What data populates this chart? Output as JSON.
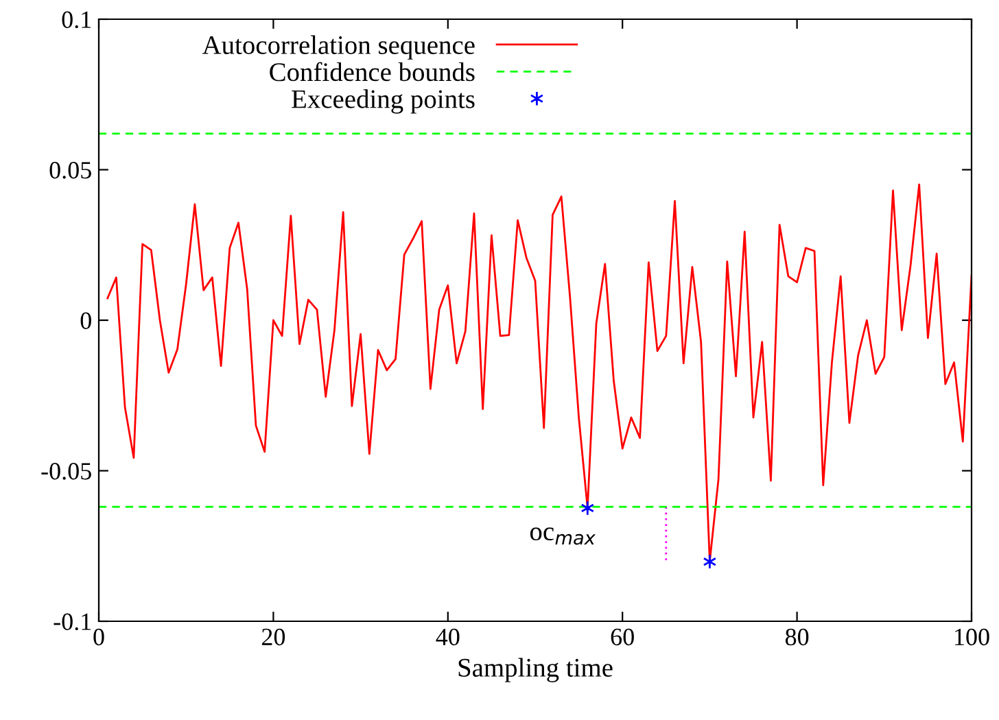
{
  "chart_data": {
    "type": "line",
    "xlabel": "Sampling time",
    "x": [
      1,
      2,
      3,
      4,
      5,
      6,
      7,
      8,
      9,
      10,
      11,
      12,
      13,
      14,
      15,
      16,
      17,
      18,
      19,
      20,
      21,
      22,
      23,
      24,
      25,
      26,
      27,
      28,
      29,
      30,
      31,
      32,
      33,
      34,
      35,
      36,
      37,
      38,
      39,
      40,
      41,
      42,
      43,
      44,
      45,
      46,
      47,
      48,
      49,
      50,
      51,
      52,
      53,
      54,
      55,
      56,
      57,
      58,
      59,
      60,
      61,
      62,
      63,
      64,
      65,
      66,
      67,
      68,
      69,
      70,
      71,
      72,
      73,
      74,
      75,
      76,
      77,
      78,
      79,
      80,
      81,
      82,
      83,
      84,
      85,
      86,
      87,
      88,
      89,
      90,
      91,
      92,
      93,
      94,
      95,
      96,
      97,
      98,
      99,
      100
    ],
    "series": [
      {
        "name": "Autocorrelation sequence",
        "color": "#ff0000",
        "values": [
          0.0073,
          0.0142,
          -0.029,
          -0.0457,
          0.0253,
          0.0233,
          0,
          -0.0174,
          -0.0097,
          0.0119,
          0.0385,
          0.01,
          0.0142,
          -0.0152,
          0.024,
          0.0324,
          0.0103,
          -0.035,
          -0.0437,
          0,
          -0.0052,
          0.0347,
          -0.0079,
          0.0068,
          0.0035,
          -0.0254,
          -0.0033,
          0.0359,
          -0.0285,
          -0.0046,
          -0.0444,
          -0.0099,
          -0.0166,
          -0.0129,
          0.0218,
          0.0271,
          0.0329,
          -0.0228,
          0.0035,
          0.0116,
          -0.0143,
          -0.0037,
          0.0355,
          -0.0295,
          0.0282,
          -0.0052,
          -0.0049,
          0.0332,
          0.0207,
          0.0131,
          -0.0358,
          0.035,
          0.0411,
          0.0073,
          -0.0323,
          -0.0624,
          -0.0011,
          0.0187,
          -0.0201,
          -0.0426,
          -0.0323,
          -0.0391,
          0.0192,
          -0.0102,
          -0.0052,
          0.0396,
          -0.0143,
          0.0177,
          -0.0072,
          -0.0802,
          -0.0528,
          0.0195,
          -0.0186,
          0.0294,
          -0.0323,
          -0.0072,
          -0.0533,
          0.0317,
          0.0146,
          0.0126,
          0.024,
          0.023,
          -0.0548,
          -0.014,
          0.0146,
          -0.0341,
          -0.0117,
          0,
          -0.0178,
          -0.0122,
          0.0431,
          -0.0033,
          0.018,
          0.0451,
          -0.0059,
          0.0221,
          -0.0212,
          -0.014,
          -0.0403,
          0.0149
        ]
      },
      {
        "name": "Exceeding points",
        "type": "scatter",
        "marker": "cross",
        "color": "#0000ff",
        "x": [
          56,
          70
        ],
        "values": [
          -0.0624,
          -0.0802
        ]
      },
      {
        "type": "line",
        "line_style": "dotted",
        "color": "#ff00ff",
        "x": [
          65,
          65
        ],
        "values": [
          -0.062,
          -0.08
        ]
      }
    ],
    "ref_lines": [
      {
        "axis": "y",
        "value": 0.062,
        "label": "Confidence bounds",
        "color": "#00ff00",
        "line_style": "dashed"
      },
      {
        "axis": "y",
        "value": -0.062,
        "color": "#00ff00",
        "line_style": "dashed"
      }
    ],
    "annotations": [
      "oc$_{max}$"
    ],
    "xlim": [
      0,
      100
    ],
    "ylim": [
      -0.1,
      0.1
    ],
    "xticks": [
      0,
      20,
      40,
      60,
      80,
      100
    ],
    "yticks": [
      {
        "value": -0.1,
        "label": "-0.1"
      },
      {
        "value": -0.05,
        "label": "-0.05"
      },
      0,
      0.05,
      0.1
    ],
    "legend": "top left",
    "grid": false
  }
}
